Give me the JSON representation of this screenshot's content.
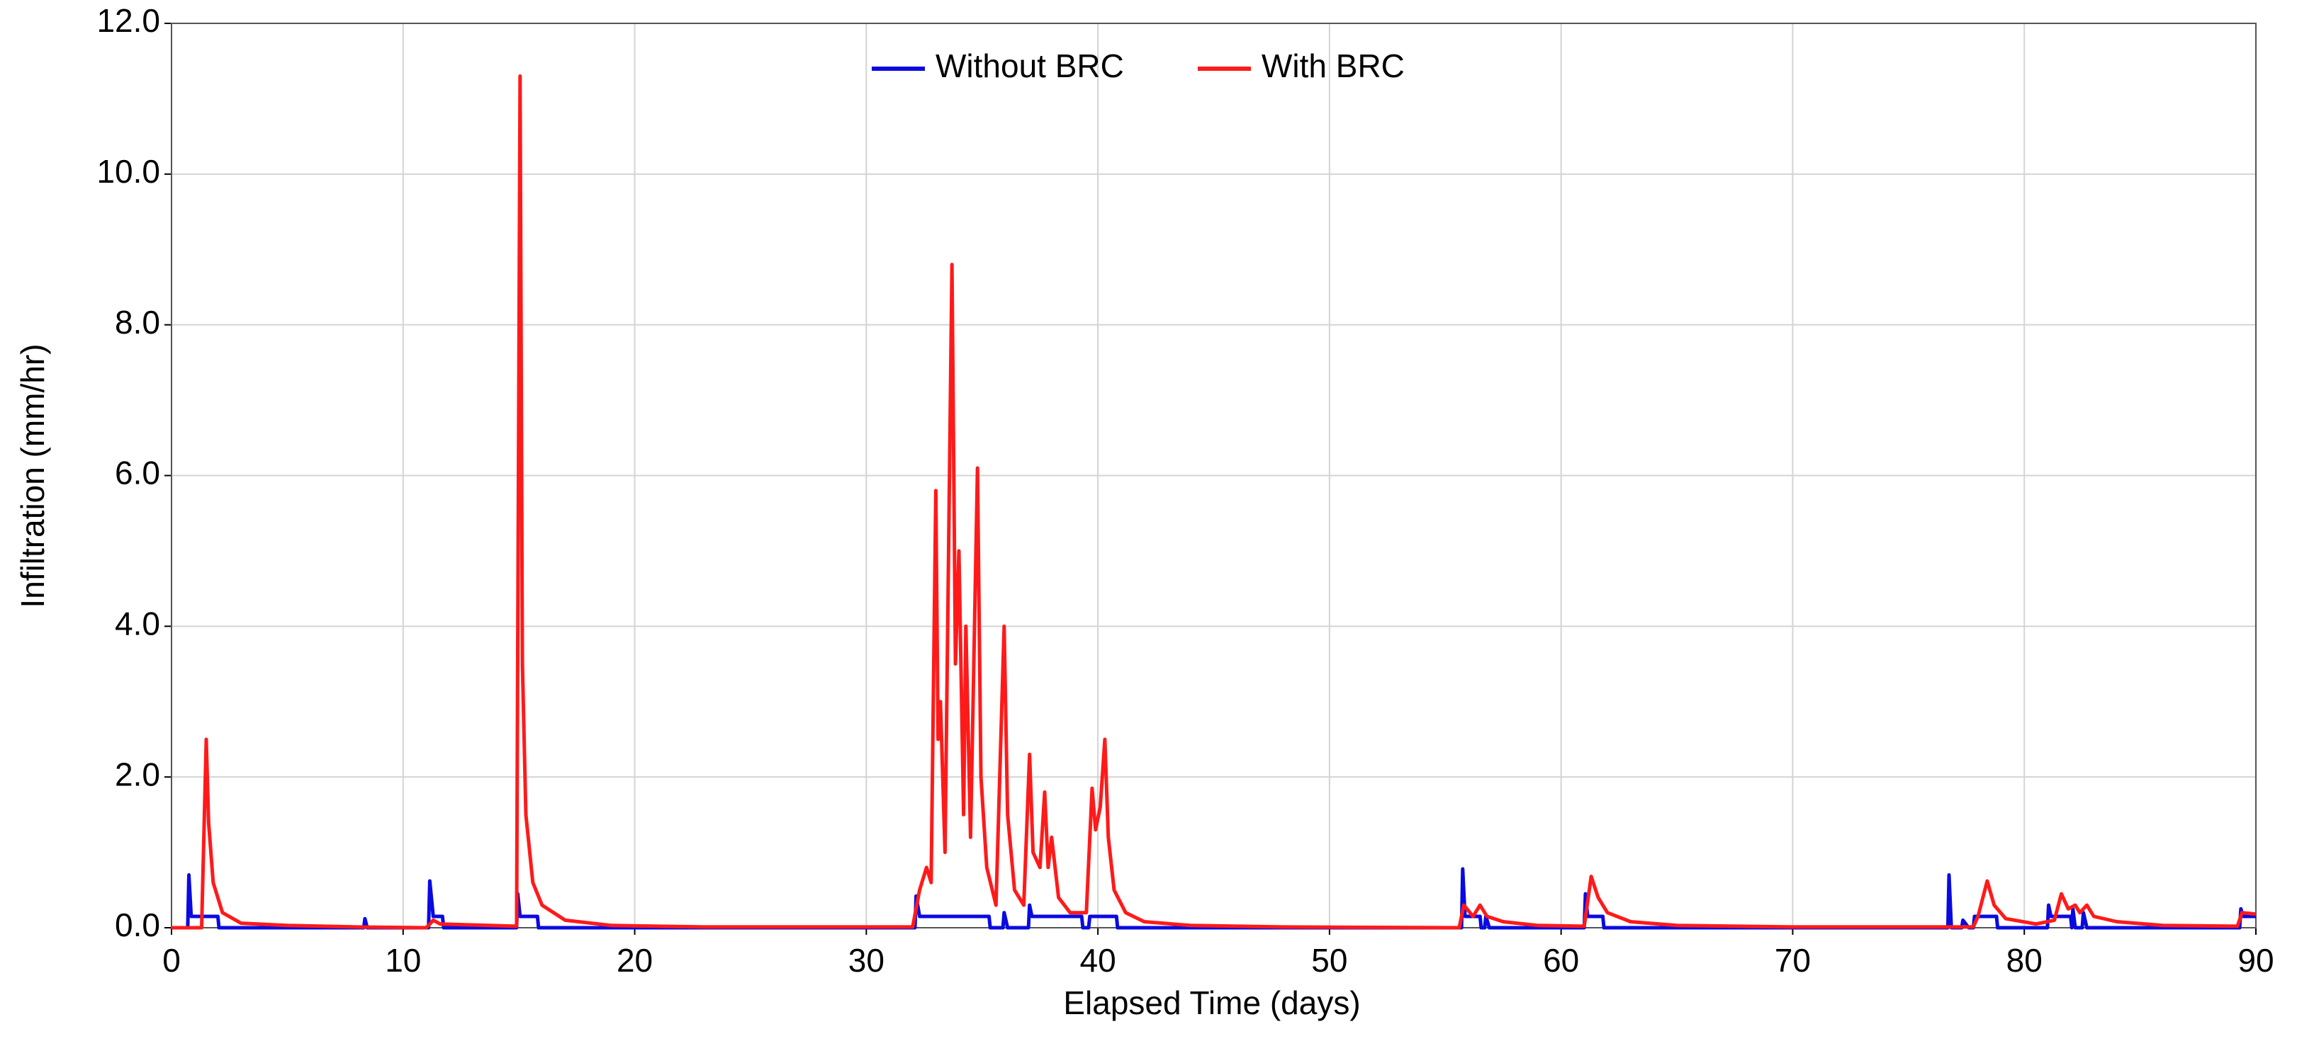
{
  "chart_data": {
    "type": "line",
    "x_label": "Elapsed Time (days)",
    "y_label": "Infiltration (mm/hr)",
    "xlim": [
      0,
      90
    ],
    "xticks": [
      0,
      10,
      20,
      30,
      40,
      50,
      60,
      70,
      80,
      90
    ],
    "ylim": [
      0,
      12
    ],
    "yticks": [
      {
        "value": 0,
        "label": "0.0"
      },
      {
        "value": 2,
        "label": "2.0"
      },
      {
        "value": 4,
        "label": "4.0"
      },
      {
        "value": 6,
        "label": "6.0"
      },
      {
        "value": 8,
        "label": "8.0"
      },
      {
        "value": 10,
        "label": "10.0"
      },
      {
        "value": 12,
        "label": "12.0"
      }
    ],
    "grid": true,
    "legend": "top",
    "series": [
      {
        "name": "Without BRC",
        "color": "#0a0ae0",
        "x": [
          0,
          0.7,
          0.75,
          0.85,
          2.0,
          2.05,
          8.3,
          8.35,
          8.45,
          11.1,
          11.15,
          11.3,
          11.7,
          11.75,
          14.9,
          14.95,
          15.05,
          15.8,
          15.85,
          32.1,
          32.15,
          32.3,
          35.3,
          35.35,
          35.9,
          35.95,
          36.1,
          37.0,
          37.05,
          37.15,
          39.3,
          39.35,
          39.6,
          39.65,
          40.8,
          40.85,
          55.7,
          55.75,
          55.85,
          56.5,
          56.55,
          56.7,
          56.75,
          56.9,
          61.0,
          61.05,
          61.15,
          61.8,
          61.85,
          76.7,
          76.75,
          76.85,
          77.3,
          77.35,
          77.6,
          77.8,
          77.85,
          78.8,
          78.85,
          81.0,
          81.05,
          81.15,
          82.0,
          82.05,
          82.1,
          82.2,
          82.5,
          82.55,
          82.7,
          89.3,
          89.35,
          89.45,
          90
        ],
        "values": [
          0,
          0,
          0.7,
          0.15,
          0.15,
          0,
          0,
          0.12,
          0,
          0,
          0.62,
          0.15,
          0.15,
          0,
          0,
          0.45,
          0.15,
          0.15,
          0,
          0,
          0.42,
          0.15,
          0.15,
          0,
          0,
          0.2,
          0,
          0,
          0.3,
          0.15,
          0.15,
          0,
          0,
          0.15,
          0.15,
          0,
          0,
          0.78,
          0.15,
          0.15,
          0,
          0,
          0.15,
          0,
          0,
          0.45,
          0.15,
          0.15,
          0,
          0,
          0.7,
          0,
          0,
          0.1,
          0,
          0,
          0.15,
          0.15,
          0,
          0,
          0.3,
          0.15,
          0.15,
          0,
          0.25,
          0,
          0,
          0.2,
          0,
          0,
          0.25,
          0.15,
          0.15
        ]
      },
      {
        "name": "With BRC",
        "color": "#ff1a1a",
        "x": [
          0,
          1.3,
          1.5,
          1.6,
          1.8,
          2.2,
          3,
          5,
          8,
          11,
          11.3,
          11.6,
          14.9,
          15.05,
          15.15,
          15.3,
          15.6,
          16,
          17,
          19,
          23,
          32,
          32.3,
          32.6,
          32.8,
          33.0,
          33.1,
          33.2,
          33.4,
          33.7,
          33.85,
          34.0,
          34.2,
          34.3,
          34.5,
          34.8,
          34.95,
          35.2,
          35.6,
          35.95,
          36.1,
          36.4,
          36.8,
          37.05,
          37.2,
          37.5,
          37.7,
          37.85,
          38.0,
          38.3,
          38.8,
          39.5,
          39.75,
          39.9,
          40.1,
          40.3,
          40.45,
          40.7,
          41.2,
          42,
          44,
          48,
          55.6,
          55.8,
          56.2,
          56.5,
          56.8,
          57.5,
          59,
          61,
          61.3,
          61.6,
          62,
          63,
          65,
          70,
          77.8,
          78.0,
          78.4,
          78.7,
          79.2,
          80.5,
          81.3,
          81.6,
          81.9,
          82.2,
          82.4,
          82.7,
          83,
          84,
          86,
          89.2,
          89.4,
          90
        ],
        "values": [
          0,
          0,
          2.5,
          1.4,
          0.6,
          0.2,
          0.06,
          0.03,
          0.01,
          0,
          0.1,
          0.05,
          0.02,
          11.3,
          3.5,
          1.5,
          0.6,
          0.3,
          0.1,
          0.03,
          0.01,
          0.01,
          0.5,
          0.8,
          0.6,
          5.8,
          2.5,
          3.0,
          1.0,
          8.8,
          3.5,
          5.0,
          1.5,
          4.0,
          1.2,
          6.1,
          2.0,
          0.8,
          0.3,
          4.0,
          1.5,
          0.5,
          0.3,
          2.3,
          1.0,
          0.8,
          1.8,
          0.8,
          1.2,
          0.4,
          0.2,
          0.2,
          1.85,
          1.3,
          1.6,
          2.5,
          1.2,
          0.5,
          0.2,
          0.08,
          0.03,
          0.01,
          0,
          0.3,
          0.15,
          0.3,
          0.15,
          0.08,
          0.03,
          0.02,
          0.68,
          0.4,
          0.2,
          0.08,
          0.03,
          0.01,
          0.01,
          0.15,
          0.62,
          0.3,
          0.12,
          0.05,
          0.1,
          0.45,
          0.25,
          0.3,
          0.2,
          0.3,
          0.15,
          0.08,
          0.03,
          0.02,
          0.2,
          0.18
        ]
      }
    ]
  }
}
